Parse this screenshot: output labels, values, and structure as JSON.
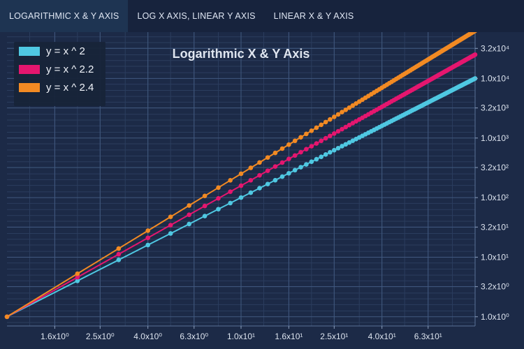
{
  "tabs": [
    {
      "label": "LOGARITHMIC X & Y AXIS",
      "active": true
    },
    {
      "label": "LOG X AXIS, LINEAR Y AXIS",
      "active": false
    },
    {
      "label": "LINEAR X & Y AXIS",
      "active": false
    }
  ],
  "chart_data": {
    "type": "line",
    "title": "Logarithmic X & Y Axis",
    "xscale": "log",
    "yscale": "log",
    "xlim": [
      1,
      100
    ],
    "ylim": [
      0.7,
      60000
    ],
    "xticks": [
      {
        "value": 1.6,
        "label": "1.6x10⁰"
      },
      {
        "value": 2.5,
        "label": "2.5x10⁰"
      },
      {
        "value": 4.0,
        "label": "4.0x10⁰"
      },
      {
        "value": 6.3,
        "label": "6.3x10⁰"
      },
      {
        "value": 10,
        "label": "1.0x10¹"
      },
      {
        "value": 16,
        "label": "1.6x10¹"
      },
      {
        "value": 25,
        "label": "2.5x10¹"
      },
      {
        "value": 40,
        "label": "4.0x10¹"
      },
      {
        "value": 63,
        "label": "6.3x10¹"
      }
    ],
    "yticks": [
      {
        "value": 1,
        "label": "1.0x10⁰"
      },
      {
        "value": 3.2,
        "label": "3.2x10⁰"
      },
      {
        "value": 10,
        "label": "1.0x10¹"
      },
      {
        "value": 32,
        "label": "3.2x10¹"
      },
      {
        "value": 100,
        "label": "1.0x10²"
      },
      {
        "value": 320,
        "label": "3.2x10²"
      },
      {
        "value": 1000,
        "label": "1.0x10³"
      },
      {
        "value": 3200,
        "label": "3.2x10³"
      },
      {
        "value": 10000,
        "label": "1.0x10⁴"
      },
      {
        "value": 32000,
        "label": "3.2x10⁴"
      }
    ],
    "x": [
      1,
      2,
      3,
      4,
      5,
      6,
      7,
      8,
      9,
      10,
      11,
      12,
      13,
      14,
      15,
      16,
      17,
      18,
      19,
      20,
      21,
      22,
      23,
      24,
      25,
      26,
      27,
      28,
      29,
      30,
      31,
      32,
      33,
      34,
      35,
      36,
      37,
      38,
      39,
      40,
      41,
      42,
      43,
      44,
      45,
      46,
      47,
      48,
      49,
      50,
      51,
      52,
      53,
      54,
      55,
      56,
      57,
      58,
      59,
      60,
      61,
      62,
      63,
      64,
      65,
      66,
      67,
      68,
      69,
      70,
      71,
      72,
      73,
      74,
      75,
      76,
      77,
      78,
      79,
      80,
      81,
      82,
      83,
      84,
      85,
      86,
      87,
      88,
      89,
      90,
      91,
      92,
      93,
      94,
      95,
      96,
      97,
      98,
      99,
      100
    ],
    "series": [
      {
        "name": "y = x ^ 2",
        "exponent": 2,
        "color": "#4fc8e2"
      },
      {
        "name": "y = x ^ 2.2",
        "exponent": 2.2,
        "color": "#e5166f"
      },
      {
        "name": "y = x ^ 2.4",
        "exponent": 2.4,
        "color": "#f28a23"
      }
    ],
    "grid": true,
    "legend_position": "top-left",
    "colors": {
      "background": "#1c2a47",
      "grid_major": "#41597f",
      "grid_minor": "#2b3d5e",
      "text": "#dde4ef"
    }
  }
}
